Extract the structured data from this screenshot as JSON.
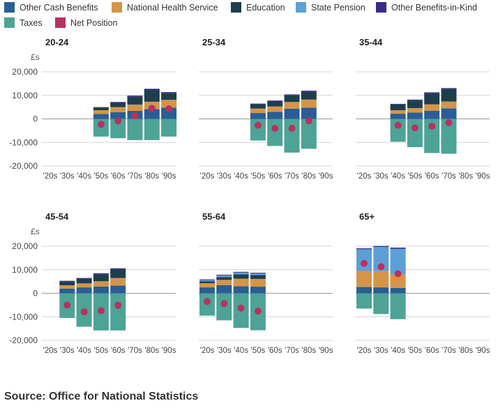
{
  "legend": [
    {
      "name": "Other Cash Benefits",
      "color": "#2a5d95"
    },
    {
      "name": "National Health Service",
      "color": "#d69448"
    },
    {
      "name": "Education",
      "color": "#1d3e4c"
    },
    {
      "name": "State Pension",
      "color": "#5b9fd6"
    },
    {
      "name": "Other Benefits-in-Kind",
      "color": "#3a2a8c"
    },
    {
      "name": "Taxes",
      "color": "#4da396"
    },
    {
      "name": "Net Position",
      "color": "#b8325f"
    }
  ],
  "source": "Source: Office for National Statistics",
  "chart_data": [
    {
      "type": "bar",
      "title": "20-24",
      "ylabel": "£s",
      "categories": [
        "'20s",
        "'30s",
        "'40s",
        "'50s",
        "'60s",
        "'70s",
        "'80s",
        "'90s"
      ],
      "ylim": [
        -20000,
        20000
      ],
      "yticks": [
        "-20,000",
        "-10,000",
        "0",
        "10,000",
        "20,000"
      ],
      "series": [
        {
          "name": "Other Cash Benefits",
          "values": [
            null,
            null,
            null,
            2100,
            2900,
            3400,
            4200,
            4800
          ]
        },
        {
          "name": "National Health Service",
          "values": [
            null,
            null,
            null,
            1600,
            2100,
            2700,
            3100,
            3300
          ]
        },
        {
          "name": "Education",
          "values": [
            null,
            null,
            null,
            900,
            1800,
            3300,
            5000,
            2800
          ]
        },
        {
          "name": "State Pension",
          "values": [
            null,
            null,
            null,
            0,
            0,
            0,
            0,
            0
          ]
        },
        {
          "name": "Other Benefits-in-Kind",
          "values": [
            null,
            null,
            null,
            400,
            400,
            500,
            500,
            500
          ]
        },
        {
          "name": "Taxes",
          "values": [
            null,
            null,
            null,
            -7500,
            -8200,
            -9000,
            -9000,
            -7500
          ]
        },
        {
          "name": "Net Position",
          "values": [
            null,
            null,
            null,
            -2300,
            -800,
            1300,
            4500,
            4300
          ]
        }
      ]
    },
    {
      "type": "bar",
      "title": "25-34",
      "categories": [
        "'20s",
        "'30s",
        "'40s",
        "'50s",
        "'60s",
        "'70s",
        "'80s",
        "'90s"
      ],
      "ylim": [
        -20000,
        20000
      ],
      "series": [
        {
          "name": "Other Cash Benefits",
          "values": [
            null,
            null,
            null,
            2500,
            3000,
            4300,
            4800,
            null
          ]
        },
        {
          "name": "National Health Service",
          "values": [
            null,
            null,
            null,
            1900,
            2300,
            2900,
            3400,
            null
          ]
        },
        {
          "name": "Education",
          "values": [
            null,
            null,
            null,
            1800,
            2100,
            2800,
            3300,
            null
          ]
        },
        {
          "name": "State Pension",
          "values": [
            null,
            null,
            null,
            0,
            0,
            0,
            0,
            null
          ]
        },
        {
          "name": "Other Benefits-in-Kind",
          "values": [
            null,
            null,
            null,
            300,
            400,
            400,
            500,
            null
          ]
        },
        {
          "name": "Taxes",
          "values": [
            null,
            null,
            null,
            -9200,
            -11500,
            -14300,
            -12700,
            null
          ]
        },
        {
          "name": "Net Position",
          "values": [
            null,
            null,
            null,
            -2700,
            -4000,
            -4000,
            -800,
            null
          ]
        }
      ]
    },
    {
      "type": "bar",
      "title": "35-44",
      "categories": [
        "'20s",
        "'30s",
        "'40s",
        "'50s",
        "'60s",
        "'70s",
        "'80s",
        "'90s"
      ],
      "ylim": [
        -20000,
        20000
      ],
      "series": [
        {
          "name": "Other Cash Benefits",
          "values": [
            null,
            null,
            2200,
            2700,
            3500,
            4500,
            null,
            null
          ]
        },
        {
          "name": "National Health Service",
          "values": [
            null,
            null,
            1500,
            1900,
            2700,
            2900,
            null,
            null
          ]
        },
        {
          "name": "Education",
          "values": [
            null,
            null,
            2400,
            3200,
            4700,
            5300,
            null,
            null
          ]
        },
        {
          "name": "State Pension",
          "values": [
            null,
            null,
            0,
            0,
            0,
            0,
            null,
            null
          ]
        },
        {
          "name": "Other Benefits-in-Kind",
          "values": [
            null,
            null,
            300,
            400,
            400,
            400,
            null,
            null
          ]
        },
        {
          "name": "Taxes",
          "values": [
            null,
            null,
            -9700,
            -12000,
            -14500,
            -14800,
            null,
            null
          ]
        },
        {
          "name": "Net Position",
          "values": [
            null,
            null,
            -2700,
            -3800,
            -3100,
            -1600,
            null,
            null
          ]
        }
      ]
    },
    {
      "type": "bar",
      "title": "45-54",
      "ylabel": "£s",
      "categories": [
        "'20s",
        "'30s",
        "'40s",
        "'50s",
        "'60s",
        "'70s",
        "'80s",
        "'90s"
      ],
      "ylim": [
        -20000,
        20000
      ],
      "yticks": [
        "-20,000",
        "-10,000",
        "0",
        "10,000",
        "20,000"
      ],
      "series": [
        {
          "name": "Other Cash Benefits",
          "values": [
            null,
            2000,
            2500,
            2900,
            3300,
            null,
            null,
            null
          ]
        },
        {
          "name": "National Health Service",
          "values": [
            null,
            1400,
            1700,
            2200,
            3200,
            null,
            null,
            null
          ]
        },
        {
          "name": "Education",
          "values": [
            null,
            1600,
            2000,
            3000,
            3700,
            null,
            null,
            null
          ]
        },
        {
          "name": "State Pension",
          "values": [
            null,
            0,
            0,
            0,
            0,
            null,
            null,
            null
          ]
        },
        {
          "name": "Other Benefits-in-Kind",
          "values": [
            null,
            300,
            300,
            400,
            400,
            null,
            null,
            null
          ]
        },
        {
          "name": "Taxes",
          "values": [
            null,
            -10500,
            -14200,
            -15800,
            -15800,
            null,
            null,
            null
          ]
        },
        {
          "name": "Net Position",
          "values": [
            null,
            -5000,
            -7900,
            -7400,
            -5100,
            null,
            null,
            null
          ]
        }
      ]
    },
    {
      "type": "bar",
      "title": "55-64",
      "categories": [
        "'20s",
        "'30s",
        "'40s",
        "'50s",
        "'60s",
        "'70s",
        "'80s",
        "'90s"
      ],
      "ylim": [
        -20000,
        20000
      ],
      "series": [
        {
          "name": "Other Cash Benefits",
          "values": [
            2500,
            3500,
            3000,
            2800,
            null,
            null,
            null,
            null
          ]
        },
        {
          "name": "National Health Service",
          "values": [
            1800,
            2200,
            3200,
            3300,
            null,
            null,
            null,
            null
          ]
        },
        {
          "name": "Education",
          "values": [
            800,
            1200,
            1800,
            1600,
            null,
            null,
            null,
            null
          ]
        },
        {
          "name": "State Pension",
          "values": [
            500,
            700,
            800,
            700,
            null,
            null,
            null,
            null
          ]
        },
        {
          "name": "Other Benefits-in-Kind",
          "values": [
            300,
            300,
            300,
            300,
            null,
            null,
            null,
            null
          ]
        },
        {
          "name": "Taxes",
          "values": [
            -9500,
            -11500,
            -14700,
            -15700,
            null,
            null,
            null,
            null
          ]
        },
        {
          "name": "Net Position",
          "values": [
            -3500,
            -4400,
            -6300,
            -7600,
            null,
            null,
            null,
            null
          ]
        }
      ]
    },
    {
      "type": "bar",
      "title": "65+",
      "categories": [
        "'20s",
        "'30s",
        "'40s",
        "'50s",
        "'60s",
        "'70s",
        "'80s",
        "'90s"
      ],
      "ylim": [
        -20000,
        20000
      ],
      "series": [
        {
          "name": "Other Cash Benefits",
          "values": [
            2700,
            2500,
            2300,
            null,
            null,
            null,
            null,
            null
          ]
        },
        {
          "name": "National Health Service",
          "values": [
            6800,
            6900,
            5800,
            null,
            null,
            null,
            null,
            null
          ]
        },
        {
          "name": "Education",
          "values": [
            0,
            0,
            0,
            null,
            null,
            null,
            null,
            null
          ]
        },
        {
          "name": "State Pension",
          "values": [
            9200,
            10300,
            10800,
            null,
            null,
            null,
            null,
            null
          ]
        },
        {
          "name": "Other Benefits-in-Kind",
          "values": [
            400,
            400,
            500,
            null,
            null,
            null,
            null,
            null
          ]
        },
        {
          "name": "Taxes",
          "values": [
            -6500,
            -8800,
            -11000,
            null,
            null,
            null,
            null,
            null
          ]
        },
        {
          "name": "Net Position",
          "values": [
            12700,
            11300,
            8300,
            null,
            null,
            null,
            null,
            null
          ]
        }
      ]
    }
  ]
}
